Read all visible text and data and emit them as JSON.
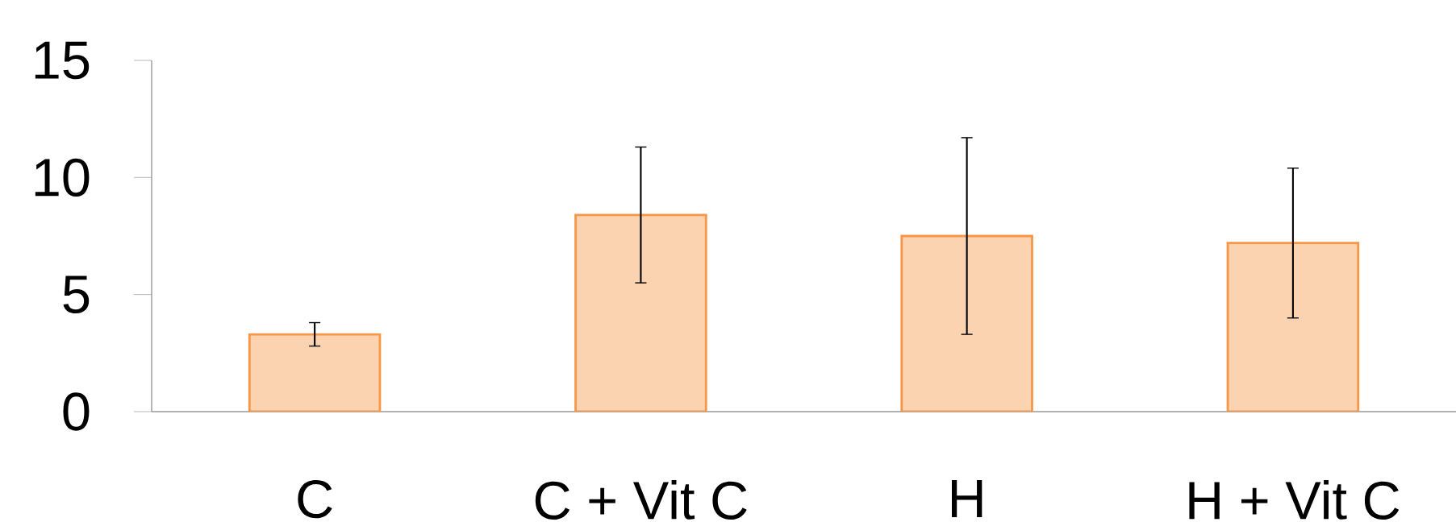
{
  "chart_data": {
    "type": "bar",
    "categories": [
      "C",
      "C + Vit C",
      "H",
      "H + Vit C"
    ],
    "values": [
      3.3,
      8.4,
      7.5,
      7.2
    ],
    "errors": [
      0.5,
      2.9,
      4.2,
      3.2
    ],
    "color": "#fcd3b0",
    "ylim": [
      0,
      15
    ],
    "yticks": [
      0,
      5,
      10,
      15
    ],
    "grid": false
  }
}
